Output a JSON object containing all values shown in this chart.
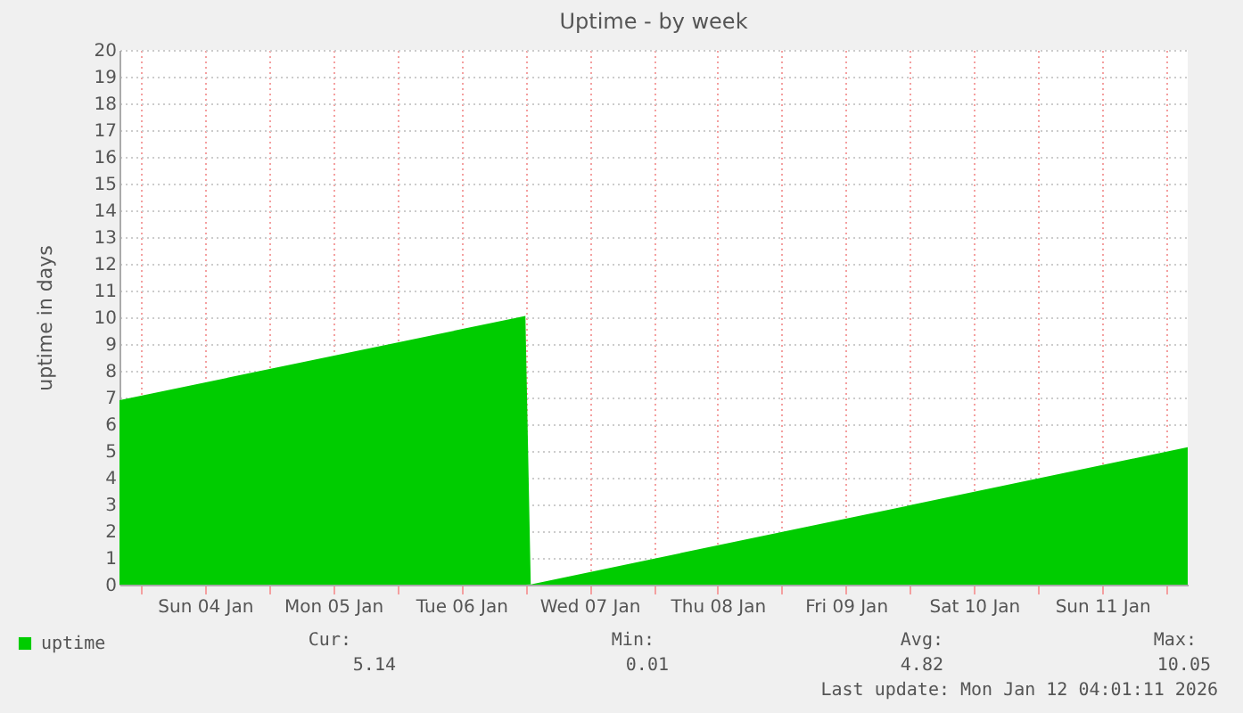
{
  "chart_data": {
    "type": "area",
    "title": "Uptime - by week",
    "ylabel": "uptime in days",
    "x": [
      "2026-01-03T20:00",
      "2026-01-07T00:00",
      "2026-01-07T00:30",
      "2026-01-07T01:00",
      "2026-01-12T04:00"
    ],
    "series": [
      {
        "name": "uptime",
        "color": "#00cc00",
        "values": [
          6.9,
          10.05,
          null,
          0.01,
          5.14
        ]
      }
    ],
    "xlim": [
      "2026-01-03T20:00",
      "2026-01-12T04:00"
    ],
    "xticks": [
      {
        "value": "2026-01-04T00:00",
        "label": null
      },
      {
        "value": "2026-01-04T12:00",
        "label": "Sun 04 Jan"
      },
      {
        "value": "2026-01-05T00:00",
        "label": null
      },
      {
        "value": "2026-01-05T12:00",
        "label": "Mon 05 Jan"
      },
      {
        "value": "2026-01-06T00:00",
        "label": null
      },
      {
        "value": "2026-01-06T12:00",
        "label": "Tue 06 Jan"
      },
      {
        "value": "2026-01-07T00:00",
        "label": null
      },
      {
        "value": "2026-01-07T12:00",
        "label": "Wed 07 Jan"
      },
      {
        "value": "2026-01-08T00:00",
        "label": null
      },
      {
        "value": "2026-01-08T12:00",
        "label": "Thu 08 Jan"
      },
      {
        "value": "2026-01-09T00:00",
        "label": null
      },
      {
        "value": "2026-01-09T12:00",
        "label": "Fri 09 Jan"
      },
      {
        "value": "2026-01-10T00:00",
        "label": null
      },
      {
        "value": "2026-01-10T12:00",
        "label": "Sat 10 Jan"
      },
      {
        "value": "2026-01-11T00:00",
        "label": null
      },
      {
        "value": "2026-01-11T12:00",
        "label": "Sun 11 Jan"
      },
      {
        "value": "2026-01-12T00:00",
        "label": null
      }
    ],
    "ylim": [
      0,
      20
    ],
    "yticks": [
      0,
      1,
      2,
      3,
      4,
      5,
      6,
      7,
      8,
      9,
      10,
      11,
      12,
      13,
      14,
      15,
      16,
      17,
      18,
      19,
      20
    ],
    "grid": true,
    "legend": "bottom left",
    "annotations": [
      "Cur:",
      "5.14",
      "Min:",
      "0.01",
      "Avg:",
      "4.82",
      "Max:",
      "10.05",
      "Last update: Mon Jan 12 04:01:11 2026"
    ]
  }
}
